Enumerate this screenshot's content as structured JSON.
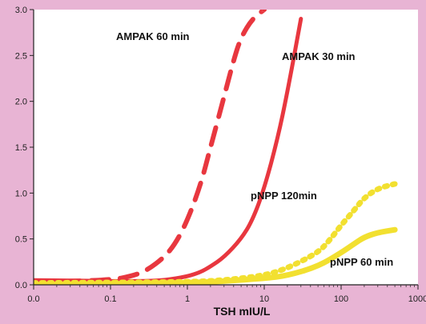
{
  "chart_data": {
    "type": "line",
    "title": "",
    "xlabel": "TSH mIU/L",
    "ylabel": "",
    "xscale": "log",
    "xlim": [
      0.01,
      1000
    ],
    "ylim": [
      0,
      3.0
    ],
    "x_ticks": [
      0.01,
      0.1,
      1,
      10,
      100,
      1000
    ],
    "x_tick_labels": [
      "0.0",
      "0.1",
      "1",
      "10",
      "100",
      "1000"
    ],
    "y_ticks": [
      0,
      0.5,
      1.0,
      1.5,
      2.0,
      2.5,
      3.0
    ],
    "y_tick_labels": [
      "0.0",
      "0.5",
      "1.0",
      "1.5",
      "2.0",
      "2.5",
      "3.0"
    ],
    "grid": false,
    "legend": "none (series labelled directly on curves)",
    "colors": {
      "background": "#e8b4d4",
      "plot_bg": "#ffffff",
      "ampak": "#e8373f",
      "pnpp": "#f2e030"
    },
    "series": [
      {
        "name": "AMPAK 60 min",
        "style": "dashed",
        "color": "#e8373f",
        "x": [
          0.01,
          0.1,
          0.2,
          0.3,
          0.5,
          0.7,
          1,
          1.5,
          2,
          3,
          4,
          5,
          7,
          10
        ],
        "y": [
          0.03,
          0.05,
          0.1,
          0.16,
          0.3,
          0.45,
          0.7,
          1.1,
          1.5,
          2.05,
          2.45,
          2.7,
          2.9,
          3.0
        ]
      },
      {
        "name": "AMPAK 30 min",
        "style": "solid",
        "color": "#e8373f",
        "x": [
          0.01,
          0.1,
          0.3,
          0.5,
          1,
          1.5,
          2,
          3,
          5,
          7,
          10,
          15,
          20,
          30
        ],
        "y": [
          0.05,
          0.04,
          0.04,
          0.05,
          0.09,
          0.14,
          0.2,
          0.3,
          0.5,
          0.7,
          1.05,
          1.6,
          2.1,
          2.9
        ]
      },
      {
        "name": "pNPP 120min",
        "style": "dotted",
        "color": "#f2e030",
        "x": [
          0.01,
          1,
          3,
          10,
          20,
          50,
          70,
          100,
          150,
          200,
          300,
          500
        ],
        "y": [
          0.02,
          0.03,
          0.05,
          0.1,
          0.18,
          0.35,
          0.48,
          0.65,
          0.82,
          0.95,
          1.05,
          1.1
        ]
      },
      {
        "name": "pNPP 60 min",
        "style": "solid-thick",
        "color": "#f2e030",
        "x": [
          0.01,
          1,
          3,
          10,
          20,
          50,
          100,
          150,
          200,
          300,
          500
        ],
        "y": [
          0.0,
          0.02,
          0.04,
          0.07,
          0.1,
          0.2,
          0.35,
          0.45,
          0.52,
          0.57,
          0.6
        ]
      }
    ],
    "annotations": [
      "AMPAK 60 min",
      "AMPAK 30 min",
      "pNPP 120min",
      "pNPP 60 min"
    ]
  }
}
